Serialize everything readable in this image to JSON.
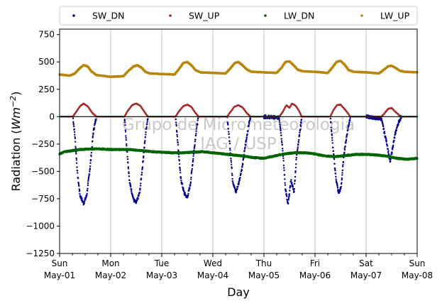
{
  "chart_data": {
    "type": "scatter",
    "title": "",
    "xlabel": "Day",
    "ylabel": "Radiation (Wm−2)",
    "ylabel_prefix": "Radiation (",
    "ylabel_unit": "Wm",
    "ylabel_exp": "−2",
    "ylabel_suffix": ")",
    "xlim": [
      0,
      7
    ],
    "ylim": [
      -1250,
      800
    ],
    "x_unit": "days since Sun May-01 00:00",
    "y_ticks": [
      750,
      500,
      250,
      0,
      -250,
      -500,
      -750,
      -1000,
      -1250
    ],
    "y_tick_labels": [
      "750",
      "500",
      "250",
      "0",
      "−250",
      "−500",
      "−750",
      "−1000",
      "−1250"
    ],
    "x_ticks": [
      {
        "x": 0,
        "day": "Sun",
        "date": "May-01"
      },
      {
        "x": 1,
        "day": "Mon",
        "date": "May-02"
      },
      {
        "x": 2,
        "day": "Tue",
        "date": "May-03"
      },
      {
        "x": 3,
        "day": "Wed",
        "date": "May-04"
      },
      {
        "x": 4,
        "day": "Thu",
        "date": "May-05"
      },
      {
        "x": 5,
        "day": "Fri",
        "date": "May-06"
      },
      {
        "x": 6,
        "day": "Sat",
        "date": "May-07"
      },
      {
        "x": 7,
        "day": "Sun",
        "date": "May-08"
      }
    ],
    "grid": "vertical",
    "zero_line": 0,
    "legend_position": "top",
    "watermark_lines": [
      "Grupo de Micrometeorologia",
      "IAG / USP"
    ],
    "series": [
      {
        "name": "SW_DN",
        "color": "#00008b",
        "points": [
          [
            0.0,
            0
          ],
          [
            0.26,
            0
          ],
          [
            0.3,
            -180
          ],
          [
            0.35,
            -520
          ],
          [
            0.4,
            -720
          ],
          [
            0.47,
            -795
          ],
          [
            0.53,
            -720
          ],
          [
            0.6,
            -450
          ],
          [
            0.66,
            -140
          ],
          [
            0.72,
            0
          ],
          [
            1.0,
            0
          ],
          [
            1.27,
            0
          ],
          [
            1.31,
            -250
          ],
          [
            1.37,
            -600
          ],
          [
            1.45,
            -760
          ],
          [
            1.5,
            -790
          ],
          [
            1.57,
            -690
          ],
          [
            1.63,
            -420
          ],
          [
            1.69,
            -130
          ],
          [
            1.73,
            0
          ],
          [
            2.0,
            0
          ],
          [
            2.27,
            0
          ],
          [
            2.31,
            -210
          ],
          [
            2.37,
            -560
          ],
          [
            2.44,
            -700
          ],
          [
            2.5,
            -740
          ],
          [
            2.56,
            -620
          ],
          [
            2.62,
            -360
          ],
          [
            2.68,
            -110
          ],
          [
            2.72,
            0
          ],
          [
            3.0,
            0
          ],
          [
            3.28,
            0
          ],
          [
            3.33,
            -240
          ],
          [
            3.39,
            -590
          ],
          [
            3.45,
            -690
          ],
          [
            3.5,
            -620
          ],
          [
            3.58,
            -450
          ],
          [
            3.64,
            -250
          ],
          [
            3.7,
            -80
          ],
          [
            3.74,
            0
          ],
          [
            4.0,
            0
          ],
          [
            4.3,
            -10
          ],
          [
            4.36,
            -260
          ],
          [
            4.42,
            -650
          ],
          [
            4.47,
            -810
          ],
          [
            4.53,
            -580
          ],
          [
            4.59,
            -690
          ],
          [
            4.64,
            -350
          ],
          [
            4.7,
            -150
          ],
          [
            4.74,
            0
          ],
          [
            5.0,
            0
          ],
          [
            5.3,
            0
          ],
          [
            5.35,
            -280
          ],
          [
            5.41,
            -560
          ],
          [
            5.46,
            -700
          ],
          [
            5.51,
            -650
          ],
          [
            5.57,
            -330
          ],
          [
            5.63,
            -150
          ],
          [
            5.69,
            0
          ],
          [
            6.0,
            0
          ],
          [
            6.3,
            -20
          ],
          [
            6.36,
            -150
          ],
          [
            6.41,
            -250
          ],
          [
            6.47,
            -420
          ],
          [
            6.52,
            -280
          ],
          [
            6.58,
            -140
          ],
          [
            6.63,
            -60
          ],
          [
            6.69,
            0
          ],
          [
            7.0,
            0
          ]
        ]
      },
      {
        "name": "SW_UP",
        "color": "#a52a2a",
        "points": [
          [
            0.0,
            0
          ],
          [
            0.26,
            0
          ],
          [
            0.32,
            40
          ],
          [
            0.4,
            95
          ],
          [
            0.47,
            120
          ],
          [
            0.55,
            95
          ],
          [
            0.63,
            40
          ],
          [
            0.72,
            0
          ],
          [
            1.0,
            0
          ],
          [
            1.27,
            0
          ],
          [
            1.33,
            50
          ],
          [
            1.42,
            105
          ],
          [
            1.5,
            120
          ],
          [
            1.58,
            100
          ],
          [
            1.66,
            45
          ],
          [
            1.73,
            0
          ],
          [
            2.0,
            0
          ],
          [
            2.27,
            0
          ],
          [
            2.33,
            45
          ],
          [
            2.42,
            95
          ],
          [
            2.5,
            110
          ],
          [
            2.58,
            90
          ],
          [
            2.65,
            40
          ],
          [
            2.72,
            0
          ],
          [
            3.0,
            0
          ],
          [
            3.28,
            0
          ],
          [
            3.34,
            40
          ],
          [
            3.42,
            90
          ],
          [
            3.5,
            105
          ],
          [
            3.58,
            85
          ],
          [
            3.66,
            35
          ],
          [
            3.74,
            0
          ],
          [
            4.0,
            0
          ],
          [
            4.3,
            0
          ],
          [
            4.37,
            45
          ],
          [
            4.44,
            105
          ],
          [
            4.5,
            80
          ],
          [
            4.55,
            120
          ],
          [
            4.62,
            100
          ],
          [
            4.68,
            60
          ],
          [
            4.74,
            0
          ],
          [
            5.0,
            0
          ],
          [
            5.3,
            0
          ],
          [
            5.36,
            60
          ],
          [
            5.43,
            105
          ],
          [
            5.5,
            110
          ],
          [
            5.56,
            80
          ],
          [
            5.63,
            40
          ],
          [
            5.69,
            0
          ],
          [
            6.0,
            0
          ],
          [
            6.3,
            0
          ],
          [
            6.36,
            30
          ],
          [
            6.43,
            70
          ],
          [
            6.5,
            80
          ],
          [
            6.56,
            50
          ],
          [
            6.63,
            20
          ],
          [
            6.69,
            0
          ],
          [
            7.0,
            0
          ]
        ]
      },
      {
        "name": "LW_DN",
        "color": "#006400",
        "points": [
          [
            0.0,
            -340
          ],
          [
            0.1,
            -320
          ],
          [
            0.25,
            -310
          ],
          [
            0.4,
            -300
          ],
          [
            0.6,
            -295
          ],
          [
            0.8,
            -295
          ],
          [
            1.0,
            -300
          ],
          [
            1.2,
            -300
          ],
          [
            1.4,
            -302
          ],
          [
            1.6,
            -310
          ],
          [
            1.8,
            -320
          ],
          [
            2.0,
            -325
          ],
          [
            2.2,
            -330
          ],
          [
            2.4,
            -330
          ],
          [
            2.6,
            -325
          ],
          [
            2.8,
            -320
          ],
          [
            3.0,
            -330
          ],
          [
            3.2,
            -340
          ],
          [
            3.4,
            -350
          ],
          [
            3.6,
            -360
          ],
          [
            3.8,
            -375
          ],
          [
            4.0,
            -380
          ],
          [
            4.2,
            -360
          ],
          [
            4.4,
            -340
          ],
          [
            4.6,
            -330
          ],
          [
            4.8,
            -330
          ],
          [
            5.0,
            -340
          ],
          [
            5.2,
            -360
          ],
          [
            5.4,
            -365
          ],
          [
            5.6,
            -355
          ],
          [
            5.8,
            -345
          ],
          [
            6.0,
            -345
          ],
          [
            6.2,
            -350
          ],
          [
            6.4,
            -360
          ],
          [
            6.6,
            -380
          ],
          [
            6.8,
            -390
          ],
          [
            7.0,
            -380
          ]
        ]
      },
      {
        "name": "LW_UP",
        "color": "#b8860b",
        "points": [
          [
            0.0,
            385
          ],
          [
            0.2,
            375
          ],
          [
            0.3,
            395
          ],
          [
            0.4,
            445
          ],
          [
            0.47,
            470
          ],
          [
            0.55,
            460
          ],
          [
            0.62,
            415
          ],
          [
            0.72,
            380
          ],
          [
            1.0,
            365
          ],
          [
            1.25,
            370
          ],
          [
            1.35,
            420
          ],
          [
            1.45,
            460
          ],
          [
            1.52,
            470
          ],
          [
            1.6,
            450
          ],
          [
            1.68,
            410
          ],
          [
            1.76,
            395
          ],
          [
            2.0,
            390
          ],
          [
            2.25,
            385
          ],
          [
            2.33,
            430
          ],
          [
            2.42,
            490
          ],
          [
            2.5,
            500
          ],
          [
            2.58,
            470
          ],
          [
            2.66,
            425
          ],
          [
            2.76,
            405
          ],
          [
            3.0,
            400
          ],
          [
            3.25,
            395
          ],
          [
            3.35,
            445
          ],
          [
            3.43,
            490
          ],
          [
            3.5,
            500
          ],
          [
            3.58,
            470
          ],
          [
            3.67,
            430
          ],
          [
            3.76,
            410
          ],
          [
            4.0,
            405
          ],
          [
            4.25,
            400
          ],
          [
            4.35,
            450
          ],
          [
            4.42,
            500
          ],
          [
            4.5,
            505
          ],
          [
            4.58,
            470
          ],
          [
            4.66,
            430
          ],
          [
            4.76,
            415
          ],
          [
            5.0,
            410
          ],
          [
            5.25,
            400
          ],
          [
            5.35,
            455
          ],
          [
            5.42,
            500
          ],
          [
            5.5,
            510
          ],
          [
            5.58,
            475
          ],
          [
            5.66,
            425
          ],
          [
            5.76,
            410
          ],
          [
            6.0,
            405
          ],
          [
            6.25,
            395
          ],
          [
            6.35,
            430
          ],
          [
            6.43,
            460
          ],
          [
            6.5,
            465
          ],
          [
            6.58,
            445
          ],
          [
            6.66,
            420
          ],
          [
            6.76,
            410
          ],
          [
            7.0,
            405
          ]
        ]
      }
    ]
  }
}
